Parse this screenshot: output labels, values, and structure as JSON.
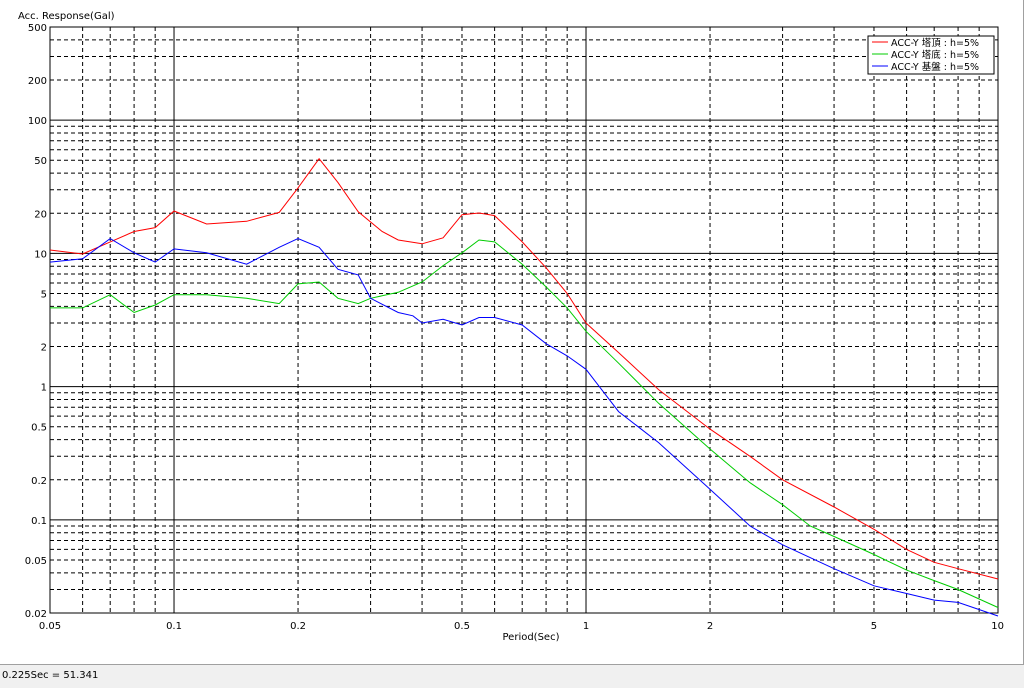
{
  "chart_data": {
    "type": "line",
    "title": "",
    "xlabel": "Period(Sec)",
    "ylabel": "Acc. Response(Gal)",
    "xscale": "log",
    "yscale": "log",
    "xlim": [
      0.05,
      10
    ],
    "ylim": [
      0.02,
      500
    ],
    "grid": true,
    "legend_position": "top-right",
    "x_ticks": [
      {
        "v": 0.05,
        "label": "0.05"
      },
      {
        "v": 0.1,
        "label": "0.1"
      },
      {
        "v": 0.2,
        "label": "0.2"
      },
      {
        "v": 0.5,
        "label": "0.5"
      },
      {
        "v": 1,
        "label": "1"
      },
      {
        "v": 2,
        "label": "2"
      },
      {
        "v": 5,
        "label": "5"
      },
      {
        "v": 10,
        "label": "10"
      }
    ],
    "y_ticks": [
      {
        "v": 0.02,
        "label": "0.02"
      },
      {
        "v": 0.05,
        "label": "0.05"
      },
      {
        "v": 0.1,
        "label": "0.1"
      },
      {
        "v": 0.2,
        "label": "0.2"
      },
      {
        "v": 0.5,
        "label": "0.5"
      },
      {
        "v": 1,
        "label": "1"
      },
      {
        "v": 2,
        "label": "2"
      },
      {
        "v": 5,
        "label": "5"
      },
      {
        "v": 10,
        "label": "10"
      },
      {
        "v": 20,
        "label": "20"
      },
      {
        "v": 50,
        "label": "50"
      },
      {
        "v": 100,
        "label": "100"
      },
      {
        "v": 200,
        "label": "200"
      },
      {
        "v": 500,
        "label": "500"
      }
    ],
    "series": [
      {
        "name": "ACC-Y 塔頂 : h=5%",
        "color": "#ff0000",
        "points": [
          [
            0.05,
            10.6
          ],
          [
            0.06,
            9.9
          ],
          [
            0.07,
            12.2
          ],
          [
            0.08,
            14.6
          ],
          [
            0.09,
            15.6
          ],
          [
            0.1,
            20.8
          ],
          [
            0.12,
            16.6
          ],
          [
            0.15,
            17.4
          ],
          [
            0.18,
            20.3
          ],
          [
            0.2,
            31
          ],
          [
            0.225,
            51.341
          ],
          [
            0.25,
            34
          ],
          [
            0.28,
            20.5
          ],
          [
            0.32,
            14.6
          ],
          [
            0.35,
            12.6
          ],
          [
            0.4,
            11.8
          ],
          [
            0.45,
            13.1
          ],
          [
            0.5,
            19.5
          ],
          [
            0.55,
            20.1
          ],
          [
            0.6,
            19.2
          ],
          [
            0.7,
            12.2
          ],
          [
            0.8,
            7.8
          ],
          [
            0.9,
            5.0
          ],
          [
            1.0,
            3.0
          ],
          [
            1.2,
            1.8
          ],
          [
            1.5,
            0.95
          ],
          [
            2.0,
            0.48
          ],
          [
            2.5,
            0.3
          ],
          [
            3.0,
            0.2
          ],
          [
            4.0,
            0.125
          ],
          [
            5.0,
            0.085
          ],
          [
            6.0,
            0.06
          ],
          [
            7.0,
            0.048
          ],
          [
            8.0,
            0.043
          ],
          [
            10.0,
            0.036
          ]
        ]
      },
      {
        "name": "ACC-Y 塔底 : h=5%",
        "color": "#00cc00",
        "points": [
          [
            0.05,
            3.9
          ],
          [
            0.06,
            3.9
          ],
          [
            0.07,
            4.9
          ],
          [
            0.08,
            3.6
          ],
          [
            0.09,
            4.1
          ],
          [
            0.1,
            4.9
          ],
          [
            0.12,
            4.9
          ],
          [
            0.15,
            4.6
          ],
          [
            0.18,
            4.2
          ],
          [
            0.2,
            5.9
          ],
          [
            0.225,
            6.1
          ],
          [
            0.25,
            4.6
          ],
          [
            0.28,
            4.2
          ],
          [
            0.3,
            4.6
          ],
          [
            0.35,
            5.1
          ],
          [
            0.4,
            6.1
          ],
          [
            0.45,
            8.1
          ],
          [
            0.5,
            10.1
          ],
          [
            0.55,
            12.6
          ],
          [
            0.6,
            12.2
          ],
          [
            0.7,
            8.3
          ],
          [
            0.8,
            5.6
          ],
          [
            0.9,
            3.9
          ],
          [
            1.0,
            2.6
          ],
          [
            1.2,
            1.5
          ],
          [
            1.5,
            0.75
          ],
          [
            2.0,
            0.34
          ],
          [
            2.5,
            0.19
          ],
          [
            3.0,
            0.13
          ],
          [
            3.5,
            0.09
          ],
          [
            4.0,
            0.075
          ],
          [
            5.0,
            0.055
          ],
          [
            6.0,
            0.042
          ],
          [
            7.0,
            0.035
          ],
          [
            8.0,
            0.03
          ],
          [
            10.0,
            0.022
          ]
        ]
      },
      {
        "name": "ACC-Y 基盤 : h=5%",
        "color": "#0000ff",
        "points": [
          [
            0.05,
            8.6
          ],
          [
            0.06,
            9.1
          ],
          [
            0.07,
            12.9
          ],
          [
            0.08,
            10.1
          ],
          [
            0.09,
            8.6
          ],
          [
            0.1,
            10.8
          ],
          [
            0.12,
            10.1
          ],
          [
            0.15,
            8.3
          ],
          [
            0.18,
            11.1
          ],
          [
            0.2,
            12.9
          ],
          [
            0.225,
            11.1
          ],
          [
            0.25,
            7.6
          ],
          [
            0.28,
            6.9
          ],
          [
            0.3,
            4.6
          ],
          [
            0.35,
            3.6
          ],
          [
            0.38,
            3.4
          ],
          [
            0.4,
            3.0
          ],
          [
            0.45,
            3.2
          ],
          [
            0.5,
            2.9
          ],
          [
            0.55,
            3.3
          ],
          [
            0.6,
            3.3
          ],
          [
            0.7,
            2.9
          ],
          [
            0.8,
            2.1
          ],
          [
            0.9,
            1.7
          ],
          [
            1.0,
            1.35
          ],
          [
            1.2,
            0.65
          ],
          [
            1.5,
            0.38
          ],
          [
            2.0,
            0.17
          ],
          [
            2.5,
            0.09
          ],
          [
            3.0,
            0.065
          ],
          [
            4.0,
            0.043
          ],
          [
            5.0,
            0.032
          ],
          [
            6.0,
            0.028
          ],
          [
            7.0,
            0.025
          ],
          [
            8.0,
            0.024
          ],
          [
            10.0,
            0.019
          ]
        ]
      }
    ]
  },
  "status": {
    "readout": "0.225Sec = 51.341"
  }
}
